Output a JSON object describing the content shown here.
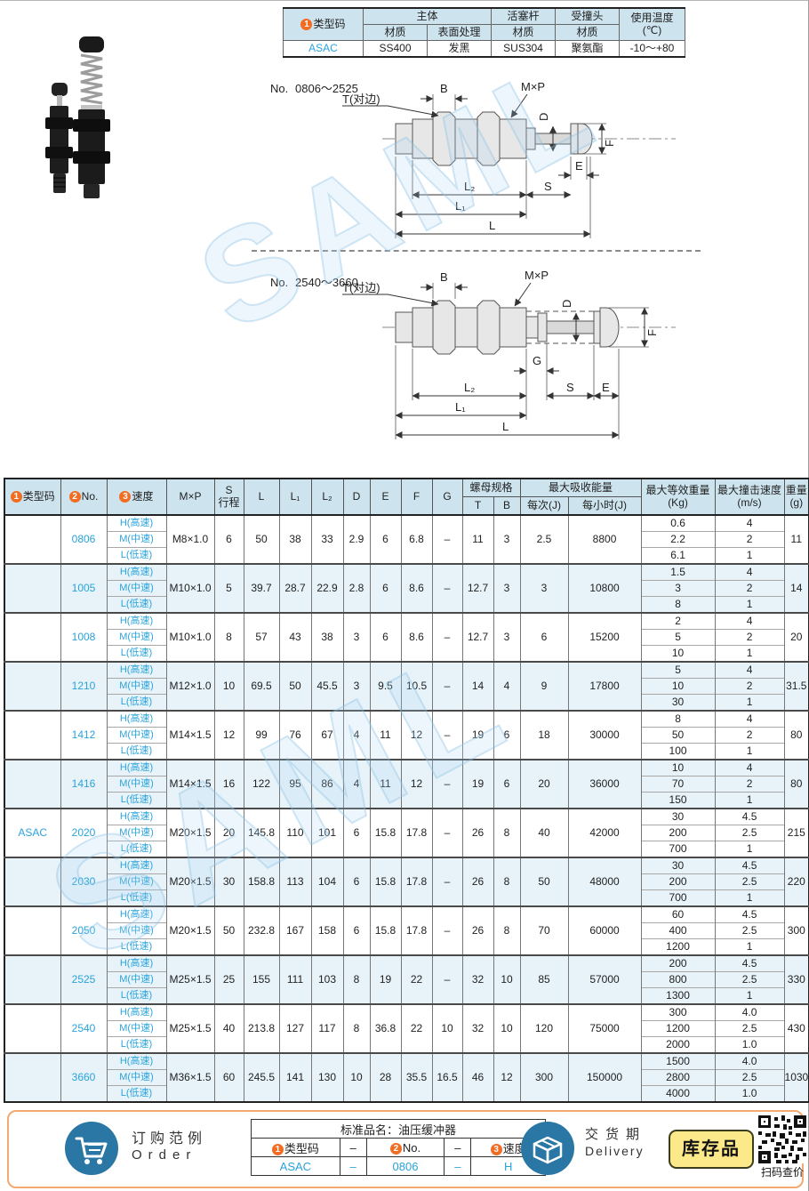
{
  "watermark": "SAML",
  "colors": {
    "accent_blue": "#29a3dc",
    "header_bg": "#cde4ef",
    "alt_row_bg": "#e7f3f9",
    "orange_badge": "#f26c21",
    "footer_border": "#f4a970",
    "stock_badge_bg": "#fce98a",
    "icon_blue": "#2a76a4"
  },
  "spec_table": {
    "c1": "1",
    "type_label": "类型码",
    "body": "主体",
    "body_material_label": "材质",
    "surface_label": "表面处理",
    "piston": "活塞杆",
    "piston_material_label": "材质",
    "head": "受撞头",
    "head_material_label": "材质",
    "temp_line1": "使用温度",
    "temp_line2": "(℃)",
    "row": {
      "type": "ASAC",
      "body_material": "SS400",
      "surface": "发黑",
      "piston_material": "SUS304",
      "head_material": "聚氨酯",
      "temp": "-10～+80"
    }
  },
  "diagrams": [
    {
      "no_label": "No.",
      "range": "0806～2525",
      "labels": {
        "t": "T(对边)",
        "b": "B",
        "mxp": "M×P",
        "d": "D",
        "f": "F",
        "e": "E",
        "s": "S",
        "l2": "L₂",
        "l1": "L₁",
        "l": "L"
      }
    },
    {
      "no_label": "No.",
      "range": "2540～3660",
      "labels": {
        "t": "T(对边)",
        "b": "B",
        "mxp": "M×P",
        "d": "D",
        "f": "F",
        "g": "G",
        "s": "S",
        "e": "E",
        "l2": "L₂",
        "l1": "L₁",
        "l": "L"
      }
    }
  ],
  "main_table": {
    "type_code": "ASAC",
    "header": {
      "c1": "1",
      "type_code": "类型码",
      "c2": "2",
      "no": "No.",
      "c3": "3",
      "speed": "速度",
      "mxp": "M×P",
      "s_top": "S",
      "s_bot": "行程",
      "l": "L",
      "l1": "L₁",
      "l2": "L₂",
      "d": "D",
      "e": "E",
      "f": "F",
      "g": "G",
      "nut_spec": "螺母规格",
      "t": "T",
      "b": "B",
      "max_absorb": "最大吸收能量",
      "per_cycle": "每次(J)",
      "per_hour": "每小时(J)",
      "max_eq_top": "最大等效重量",
      "max_eq_bot": "(Kg)",
      "max_spd_top": "最大撞击速度",
      "max_spd_bot": "(m/s)",
      "weight_top": "重量",
      "weight_bot": "(g)"
    },
    "rows": [
      {
        "no": "0806",
        "mxp": "M8×1.0",
        "s": "6",
        "l": "50",
        "l1": "38",
        "l2": "33",
        "d": "2.9",
        "e": "6",
        "f": "6.8",
        "g": "–",
        "t": "11",
        "b": "3",
        "per_cycle": "2.5",
        "per_hour": "8800",
        "speeds": [
          {
            "label": "H(高速)",
            "kg": "0.6",
            "ms": "4"
          },
          {
            "label": "M(中速)",
            "kg": "2.2",
            "ms": "2"
          },
          {
            "label": "L(低速)",
            "kg": "6.1",
            "ms": "1"
          }
        ],
        "weight": "11"
      },
      {
        "no": "1005",
        "mxp": "M10×1.0",
        "s": "5",
        "l": "39.7",
        "l1": "28.7",
        "l2": "22.9",
        "d": "2.8",
        "e": "6",
        "f": "8.6",
        "g": "–",
        "t": "12.7",
        "b": "3",
        "per_cycle": "3",
        "per_hour": "10800",
        "speeds": [
          {
            "label": "H(高速)",
            "kg": "1.5",
            "ms": "4"
          },
          {
            "label": "M(中速)",
            "kg": "3",
            "ms": "2"
          },
          {
            "label": "L(低速)",
            "kg": "8",
            "ms": "1"
          }
        ],
        "weight": "14"
      },
      {
        "no": "1008",
        "mxp": "M10×1.0",
        "s": "8",
        "l": "57",
        "l1": "43",
        "l2": "38",
        "d": "3",
        "e": "6",
        "f": "8.6",
        "g": "–",
        "t": "12.7",
        "b": "3",
        "per_cycle": "6",
        "per_hour": "15200",
        "speeds": [
          {
            "label": "H(高速)",
            "kg": "2",
            "ms": "4"
          },
          {
            "label": "M(中速)",
            "kg": "5",
            "ms": "2"
          },
          {
            "label": "L(低速)",
            "kg": "10",
            "ms": "1"
          }
        ],
        "weight": "20"
      },
      {
        "no": "1210",
        "mxp": "M12×1.0",
        "s": "10",
        "l": "69.5",
        "l1": "50",
        "l2": "45.5",
        "d": "3",
        "e": "9.5",
        "f": "10.5",
        "g": "–",
        "t": "14",
        "b": "4",
        "per_cycle": "9",
        "per_hour": "17800",
        "speeds": [
          {
            "label": "H(高速)",
            "kg": "5",
            "ms": "4"
          },
          {
            "label": "M(中速)",
            "kg": "10",
            "ms": "2"
          },
          {
            "label": "L(低速)",
            "kg": "30",
            "ms": "1"
          }
        ],
        "weight": "31.5"
      },
      {
        "no": "1412",
        "mxp": "M14×1.5",
        "s": "12",
        "l": "99",
        "l1": "76",
        "l2": "67",
        "d": "4",
        "e": "11",
        "f": "12",
        "g": "–",
        "t": "19",
        "b": "6",
        "per_cycle": "18",
        "per_hour": "30000",
        "speeds": [
          {
            "label": "H(高速)",
            "kg": "8",
            "ms": "4"
          },
          {
            "label": "M(中速)",
            "kg": "50",
            "ms": "2"
          },
          {
            "label": "L(低速)",
            "kg": "100",
            "ms": "1"
          }
        ],
        "weight": "80"
      },
      {
        "no": "1416",
        "mxp": "M14×1.5",
        "s": "16",
        "l": "122",
        "l1": "95",
        "l2": "86",
        "d": "4",
        "e": "11",
        "f": "12",
        "g": "–",
        "t": "19",
        "b": "6",
        "per_cycle": "20",
        "per_hour": "36000",
        "speeds": [
          {
            "label": "H(高速)",
            "kg": "10",
            "ms": "4"
          },
          {
            "label": "M(中速)",
            "kg": "70",
            "ms": "2"
          },
          {
            "label": "L(低速)",
            "kg": "150",
            "ms": "1"
          }
        ],
        "weight": "80"
      },
      {
        "no": "2020",
        "mxp": "M20×1.5",
        "s": "20",
        "l": "145.8",
        "l1": "110",
        "l2": "101",
        "d": "6",
        "e": "15.8",
        "f": "17.8",
        "g": "–",
        "t": "26",
        "b": "8",
        "per_cycle": "40",
        "per_hour": "42000",
        "speeds": [
          {
            "label": "H(高速)",
            "kg": "30",
            "ms": "4.5"
          },
          {
            "label": "M(中速)",
            "kg": "200",
            "ms": "2.5"
          },
          {
            "label": "L(低速)",
            "kg": "700",
            "ms": "1"
          }
        ],
        "weight": "215"
      },
      {
        "no": "2030",
        "mxp": "M20×1.5",
        "s": "30",
        "l": "158.8",
        "l1": "113",
        "l2": "104",
        "d": "6",
        "e": "15.8",
        "f": "17.8",
        "g": "–",
        "t": "26",
        "b": "8",
        "per_cycle": "50",
        "per_hour": "48000",
        "speeds": [
          {
            "label": "H(高速)",
            "kg": "30",
            "ms": "4.5"
          },
          {
            "label": "M(中速)",
            "kg": "200",
            "ms": "2.5"
          },
          {
            "label": "L(低速)",
            "kg": "700",
            "ms": "1"
          }
        ],
        "weight": "220"
      },
      {
        "no": "2050",
        "mxp": "M20×1.5",
        "s": "50",
        "l": "232.8",
        "l1": "167",
        "l2": "158",
        "d": "6",
        "e": "15.8",
        "f": "17.8",
        "g": "–",
        "t": "26",
        "b": "8",
        "per_cycle": "70",
        "per_hour": "60000",
        "speeds": [
          {
            "label": "H(高速)",
            "kg": "60",
            "ms": "4.5"
          },
          {
            "label": "M(中速)",
            "kg": "400",
            "ms": "2.5"
          },
          {
            "label": "L(低速)",
            "kg": "1200",
            "ms": "1"
          }
        ],
        "weight": "300"
      },
      {
        "no": "2525",
        "mxp": "M25×1.5",
        "s": "25",
        "l": "155",
        "l1": "111",
        "l2": "103",
        "d": "8",
        "e": "19",
        "f": "22",
        "g": "–",
        "t": "32",
        "b": "10",
        "per_cycle": "85",
        "per_hour": "57000",
        "speeds": [
          {
            "label": "H(高速)",
            "kg": "200",
            "ms": "4.5"
          },
          {
            "label": "M(中速)",
            "kg": "800",
            "ms": "2.5"
          },
          {
            "label": "L(低速)",
            "kg": "1300",
            "ms": "1"
          }
        ],
        "weight": "330"
      },
      {
        "no": "2540",
        "mxp": "M25×1.5",
        "s": "40",
        "l": "213.8",
        "l1": "127",
        "l2": "117",
        "d": "8",
        "e": "36.8",
        "f": "22",
        "g": "10",
        "t": "32",
        "b": "10",
        "per_cycle": "120",
        "per_hour": "75000",
        "speeds": [
          {
            "label": "H(高速)",
            "kg": "300",
            "ms": "4.0"
          },
          {
            "label": "M(中速)",
            "kg": "1200",
            "ms": "2.5"
          },
          {
            "label": "L(低速)",
            "kg": "2000",
            "ms": "1.0"
          }
        ],
        "weight": "430"
      },
      {
        "no": "3660",
        "mxp": "M36×1.5",
        "s": "60",
        "l": "245.5",
        "l1": "141",
        "l2": "130",
        "d": "10",
        "e": "28",
        "f": "35.5",
        "g": "16.5",
        "t": "46",
        "b": "12",
        "per_cycle": "300",
        "per_hour": "150000",
        "speeds": [
          {
            "label": "H(高速)",
            "kg": "1500",
            "ms": "4.0"
          },
          {
            "label": "M(中速)",
            "kg": "2800",
            "ms": "2.5"
          },
          {
            "label": "L(低速)",
            "kg": "4000",
            "ms": "1.0"
          }
        ],
        "weight": "1030"
      }
    ]
  },
  "footer": {
    "order": {
      "title_cn": "订购范例",
      "title_en": "Order",
      "product_label": "标准品名：油压缓冲器",
      "c1": "1",
      "col1": "类型码",
      "dash1": "–",
      "c2": "2",
      "col2": "No.",
      "dash2": "–",
      "c3": "3",
      "col3": "速度",
      "v1": "ASAC",
      "vdash1": "–",
      "v2": "0806",
      "vdash2": "–",
      "v3": "H"
    },
    "delivery": {
      "cn": "交货期",
      "en": "Delivery",
      "badge": "库存品",
      "qr_caption": "扫码查价"
    }
  }
}
